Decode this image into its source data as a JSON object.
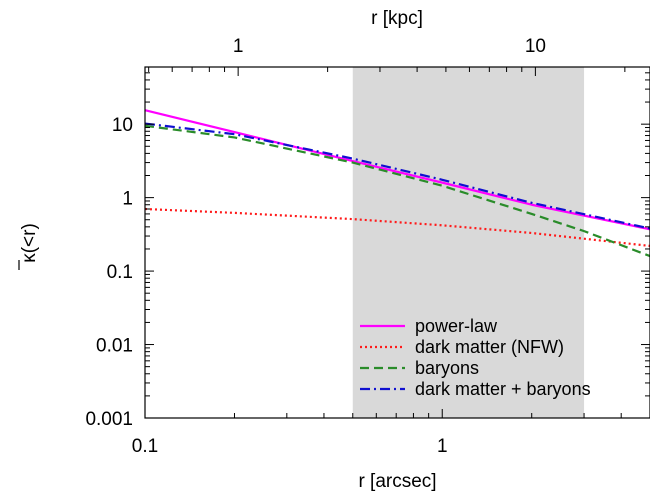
{
  "chart_data": {
    "type": "line",
    "xlabel": "r [arcsec]",
    "x2label": "r [kpc]",
    "ylabel_main": "κ",
    "ylabel_suffix": "(<r)",
    "xscale": "log",
    "yscale": "log",
    "xlim": [
      0.1,
      5.0
    ],
    "ylim": [
      0.001,
      60
    ],
    "x_ticks": [
      0.1,
      1
    ],
    "x_tick_labels": [
      "0.1",
      "1"
    ],
    "y_ticks": [
      0.001,
      0.01,
      0.1,
      1,
      10
    ],
    "y_tick_labels": [
      "0.001",
      "0.01",
      "0.1",
      "1",
      "10"
    ],
    "x2_ticks_kpc": [
      1,
      10
    ],
    "x2_tick_labels": [
      "1",
      "10"
    ],
    "x2_kpc_per_arcsec": 4.86,
    "shaded_region": {
      "x0": 0.5,
      "x1": 3.0,
      "color": "#d9d9d9"
    },
    "grid": false,
    "legend_position": "bottom-right",
    "series": [
      {
        "name": "power-law",
        "color": "#ff00ff",
        "style": "solid",
        "x": [
          0.1,
          0.2,
          0.5,
          1.0,
          2.0,
          5.0
        ],
        "y": [
          15.5,
          7.8,
          3.15,
          1.6,
          0.8,
          0.37
        ]
      },
      {
        "name": "dark matter (NFW)",
        "color": "#ff1a1a",
        "style": "dotted",
        "x": [
          0.1,
          0.2,
          0.5,
          1.0,
          2.0,
          5.0
        ],
        "y": [
          0.7,
          0.62,
          0.51,
          0.42,
          0.33,
          0.22
        ]
      },
      {
        "name": "baryons",
        "color": "#2a8c2a",
        "style": "dashed",
        "x": [
          0.1,
          0.2,
          0.5,
          1.0,
          2.0,
          3.0,
          5.0
        ],
        "y": [
          9.5,
          6.6,
          3.0,
          1.45,
          0.6,
          0.35,
          0.16
        ]
      },
      {
        "name": "dark matter + baryons",
        "color": "#1010d0",
        "style": "dashdot",
        "x": [
          0.1,
          0.2,
          0.5,
          1.0,
          2.0,
          5.0
        ],
        "y": [
          10.2,
          7.3,
          3.4,
          1.75,
          0.85,
          0.38
        ]
      }
    ]
  }
}
